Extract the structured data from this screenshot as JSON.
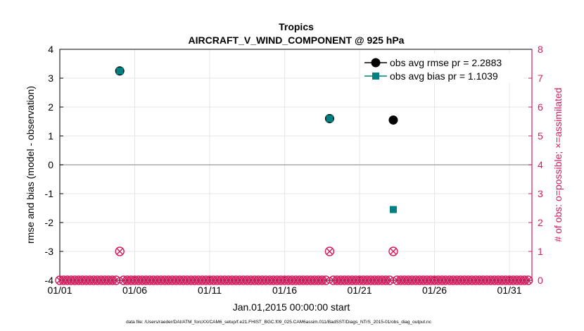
{
  "chart_data": {
    "type": "scatter",
    "title": "Tropics",
    "subtitle": "AIRCRAFT_V_WIND_COMPONENT @ 925 hPa",
    "xlabel": "Jan.01,2015 00:00:00 start",
    "ylabel_left": "rmse and bias (model - observation)",
    "ylabel_right": "# of obs: o=possible; ×=assimilated",
    "footnote": "data file: /Users/raeder/DAI/ATM_forcXX/CAM6_setup/f.e21.FHIST_BGC.f09_025.CAM6assim.011/BadSST/Diags_NTrS_2015-01/obs_diag_output.nc",
    "xlim": [
      1,
      32.5
    ],
    "ylim_left": [
      -4,
      4
    ],
    "ylim_right": [
      0,
      8
    ],
    "x_ticks": [
      {
        "value": 1,
        "label": "01/01"
      },
      {
        "value": 6,
        "label": "01/06"
      },
      {
        "value": 11,
        "label": "01/11"
      },
      {
        "value": 16,
        "label": "01/16"
      },
      {
        "value": 21,
        "label": "01/21"
      },
      {
        "value": 26,
        "label": "01/26"
      },
      {
        "value": 31,
        "label": "01/31"
      }
    ],
    "y_ticks_left": [
      4,
      3,
      2,
      1,
      0,
      -1,
      -2,
      -3,
      -4
    ],
    "y_ticks_right": [
      8,
      7,
      6,
      5,
      4,
      3,
      2,
      1,
      0
    ],
    "grid": true,
    "legend_position": "top-right",
    "legend": [
      {
        "label": "obs avg rmse pr = 2.2883",
        "color": "#000000"
      },
      {
        "label": "obs avg bias pr = 1.1039",
        "color": "#008080"
      }
    ],
    "series": [
      {
        "name": "obs avg rmse pr = 2.2883",
        "color": "#000000",
        "marker": "circle",
        "points": [
          {
            "x": 5,
            "y": 3.25
          },
          {
            "x": 19,
            "y": 1.6
          },
          {
            "x": 23.25,
            "y": 1.55
          }
        ]
      },
      {
        "name": "obs avg bias pr = 1.1039",
        "color": "#008080",
        "marker": "square",
        "points": [
          {
            "x": 5,
            "y": 3.25
          },
          {
            "x": 19,
            "y": 1.6
          },
          {
            "x": 23.25,
            "y": -1.55
          }
        ]
      }
    ],
    "obs_count_color": "#d6195f",
    "obs_count_points": [
      {
        "x": 5,
        "count": 1
      },
      {
        "x": 19,
        "count": 1
      },
      {
        "x": 23.25,
        "count": 1
      }
    ]
  }
}
